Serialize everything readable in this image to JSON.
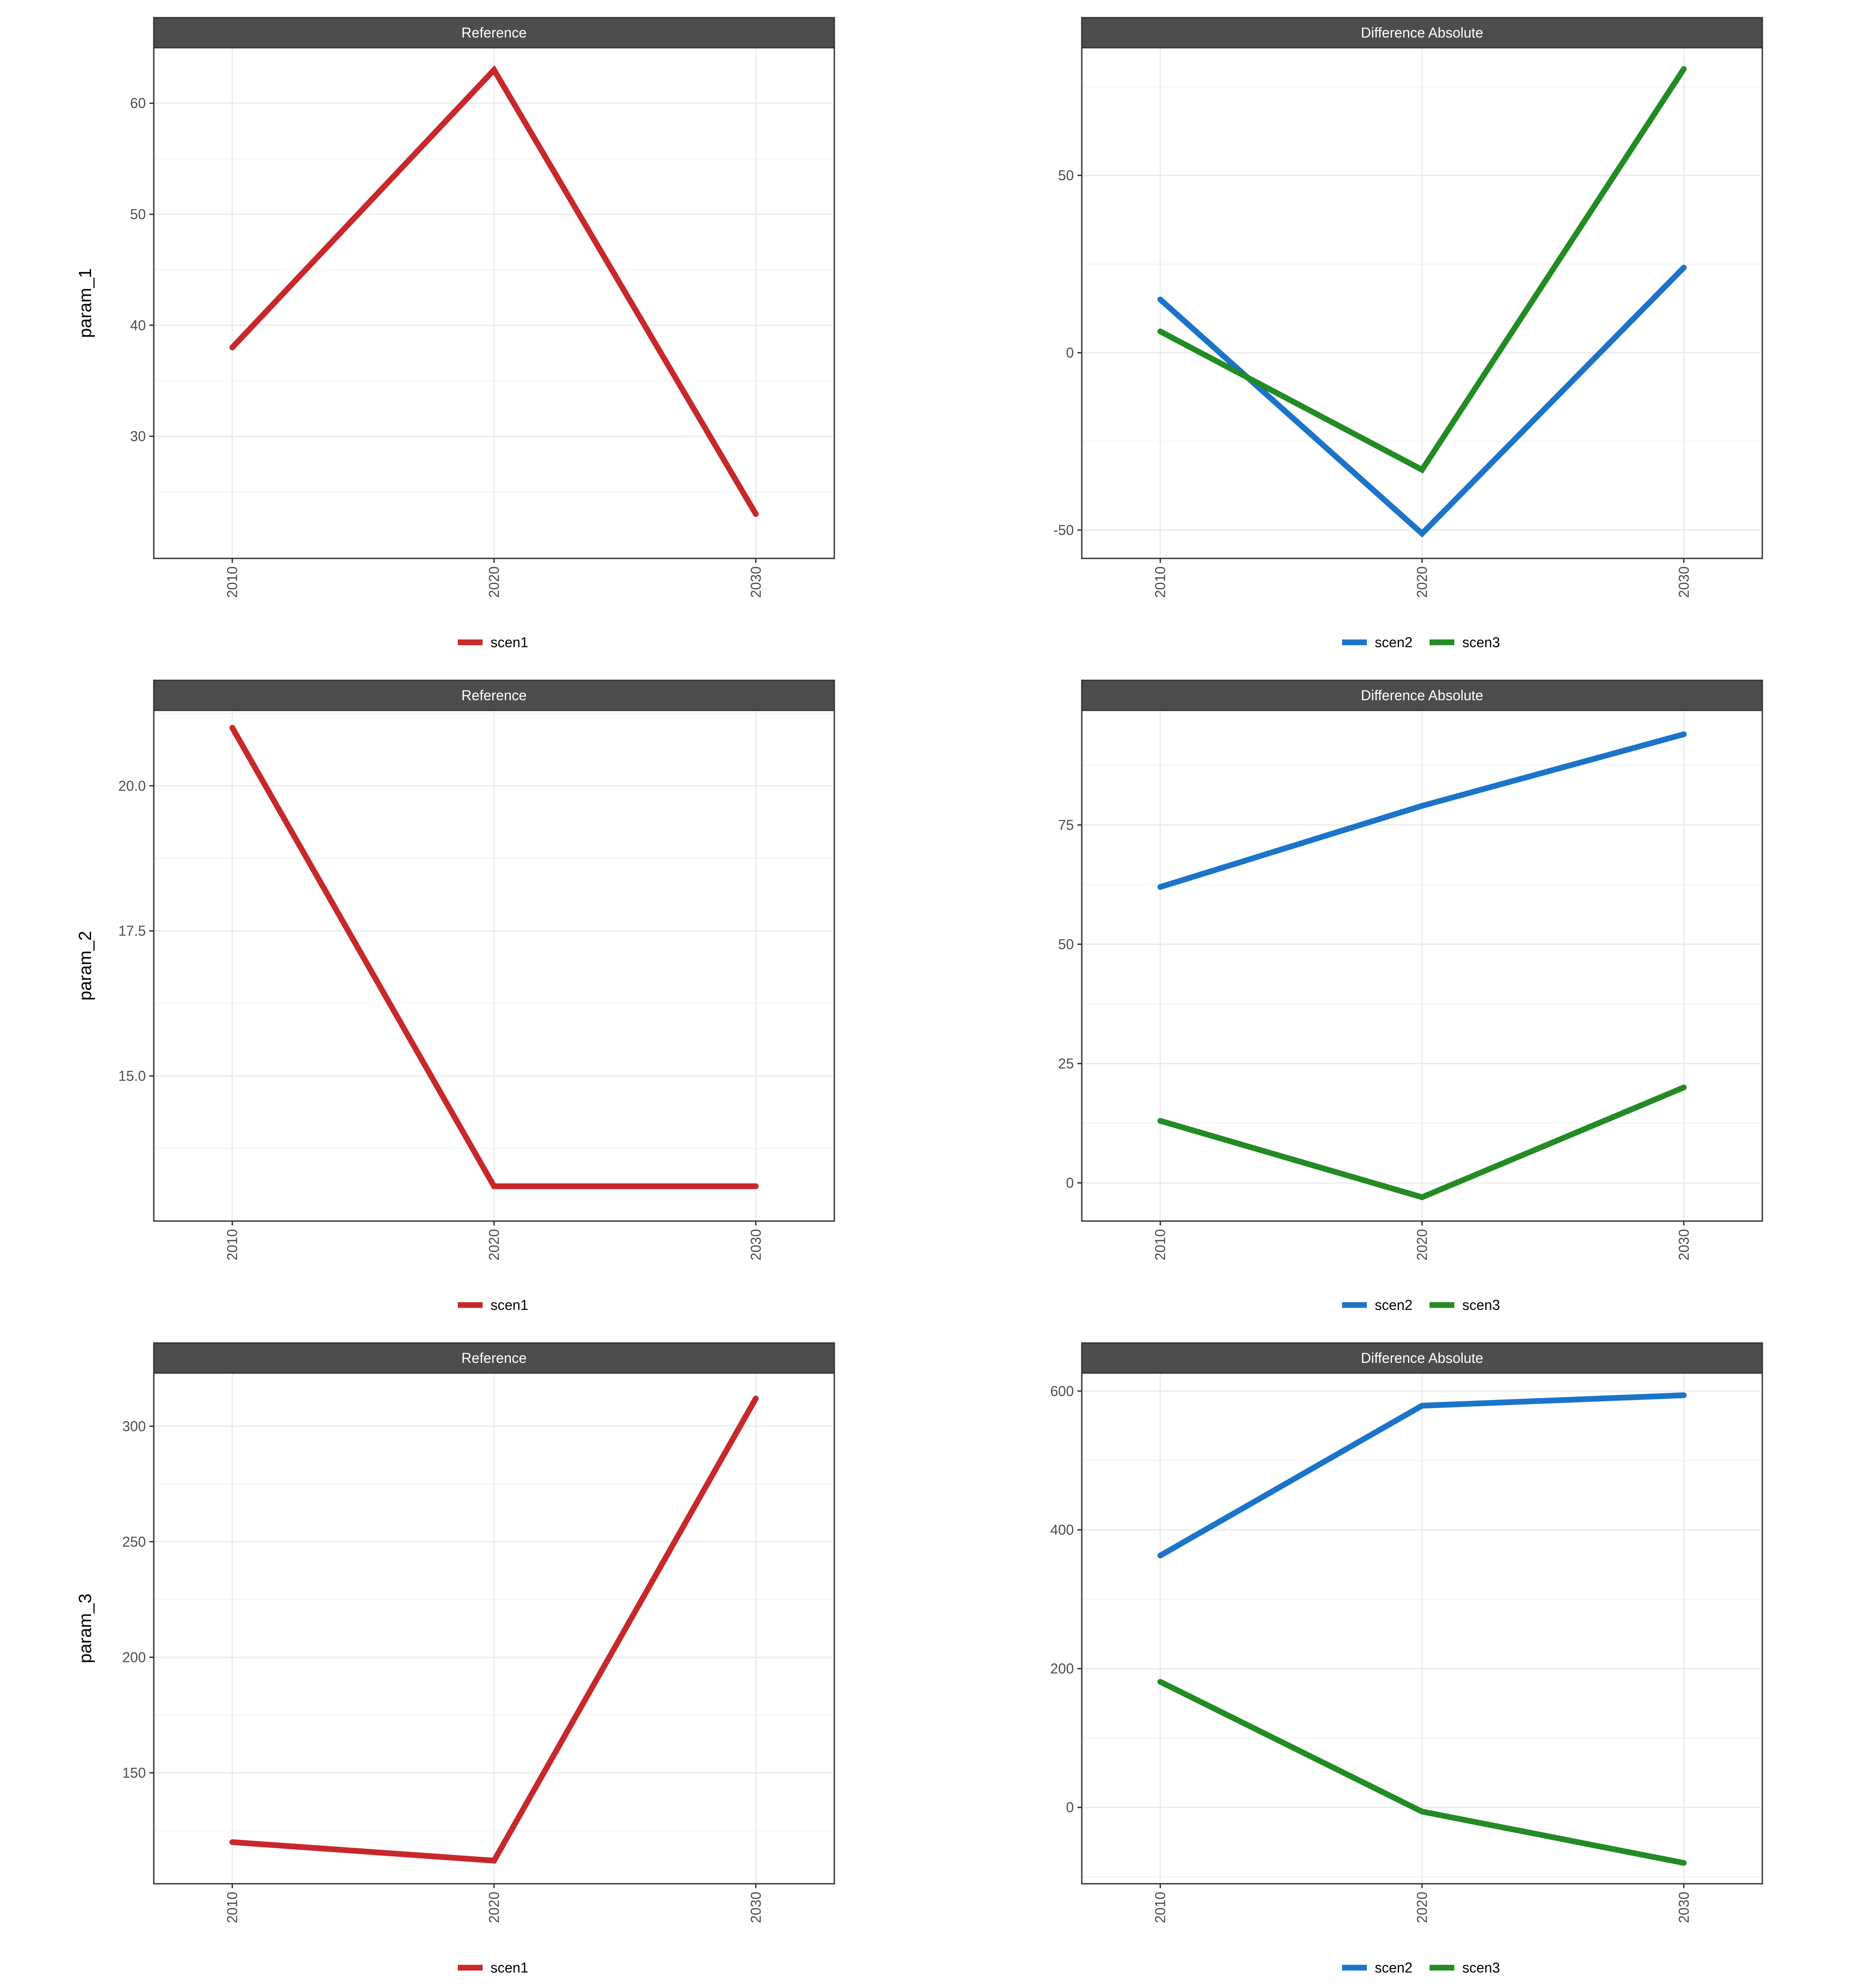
{
  "colors": {
    "scen1": "#c8272b",
    "scen2": "#1b74c9",
    "scen3": "#238b23"
  },
  "chart_data": [
    {
      "type": "line",
      "facet": "Reference",
      "ylabel": "param_1",
      "x": [
        "2010",
        "2020",
        "2030"
      ],
      "ylim": [
        19,
        65
      ],
      "yticks": [
        30,
        40,
        50,
        60
      ],
      "series": [
        {
          "name": "scen1",
          "color": "#c8272b",
          "values": [
            38,
            63,
            23
          ]
        }
      ]
    },
    {
      "type": "line",
      "facet": "Difference Absolute",
      "ylabel": "",
      "x": [
        "2010",
        "2020",
        "2030"
      ],
      "ylim": [
        -58,
        86
      ],
      "yticks": [
        -50,
        0,
        50
      ],
      "series": [
        {
          "name": "scen2",
          "color": "#1b74c9",
          "values": [
            15,
            -51,
            24
          ]
        },
        {
          "name": "scen3",
          "color": "#238b23",
          "values": [
            6,
            -33,
            80
          ]
        }
      ]
    },
    {
      "type": "line",
      "facet": "Reference",
      "ylabel": "param_2",
      "x": [
        "2010",
        "2020",
        "2030"
      ],
      "ylim": [
        12.5,
        21.3
      ],
      "yticks": [
        "15.0",
        "17.5",
        "20.0"
      ],
      "series": [
        {
          "name": "scen1",
          "color": "#c8272b",
          "values": [
            21.0,
            13.1,
            13.1
          ]
        }
      ]
    },
    {
      "type": "line",
      "facet": "Difference Absolute",
      "ylabel": "",
      "x": [
        "2010",
        "2020",
        "2030"
      ],
      "ylim": [
        -8,
        99
      ],
      "yticks": [
        0,
        25,
        50,
        75
      ],
      "series": [
        {
          "name": "scen2",
          "color": "#1b74c9",
          "values": [
            62,
            79,
            94
          ]
        },
        {
          "name": "scen3",
          "color": "#238b23",
          "values": [
            13,
            -3,
            20
          ]
        }
      ]
    },
    {
      "type": "line",
      "facet": "Reference",
      "ylabel": "param_3",
      "x": [
        "2010",
        "2020",
        "2030"
      ],
      "ylim": [
        102,
        323
      ],
      "yticks": [
        150,
        200,
        250,
        300
      ],
      "series": [
        {
          "name": "scen1",
          "color": "#c8272b",
          "values": [
            120,
            112,
            312
          ]
        }
      ]
    },
    {
      "type": "line",
      "facet": "Difference Absolute",
      "ylabel": "",
      "x": [
        "2010",
        "2020",
        "2030"
      ],
      "ylim": [
        -110,
        626
      ],
      "yticks": [
        0,
        200,
        400,
        600
      ],
      "series": [
        {
          "name": "scen2",
          "color": "#1b74c9",
          "values": [
            363,
            579,
            594
          ]
        },
        {
          "name": "scen3",
          "color": "#238b23",
          "values": [
            181,
            -6,
            -80
          ]
        }
      ]
    }
  ]
}
